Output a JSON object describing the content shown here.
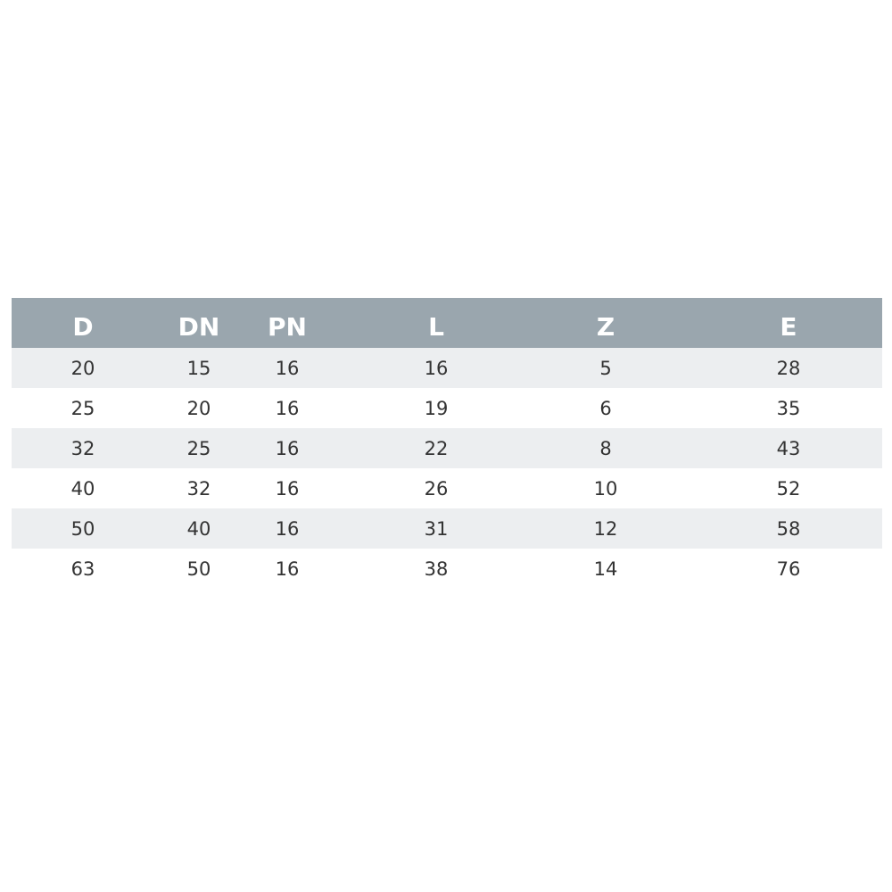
{
  "colors": {
    "header_bg": "#9aa6ae",
    "stripe_bg": "#eceef0",
    "header_text": "#ffffff",
    "cell_text": "#333333"
  },
  "table": {
    "headers": [
      "D",
      "DN",
      "PN",
      "L",
      "Z",
      "E"
    ],
    "rows": [
      [
        "20",
        "15",
        "16",
        "16",
        "5",
        "28"
      ],
      [
        "25",
        "20",
        "16",
        "19",
        "6",
        "35"
      ],
      [
        "32",
        "25",
        "16",
        "22",
        "8",
        "43"
      ],
      [
        "40",
        "32",
        "16",
        "26",
        "10",
        "52"
      ],
      [
        "50",
        "40",
        "16",
        "31",
        "12",
        "58"
      ],
      [
        "63",
        "50",
        "16",
        "38",
        "14",
        "76"
      ]
    ]
  }
}
